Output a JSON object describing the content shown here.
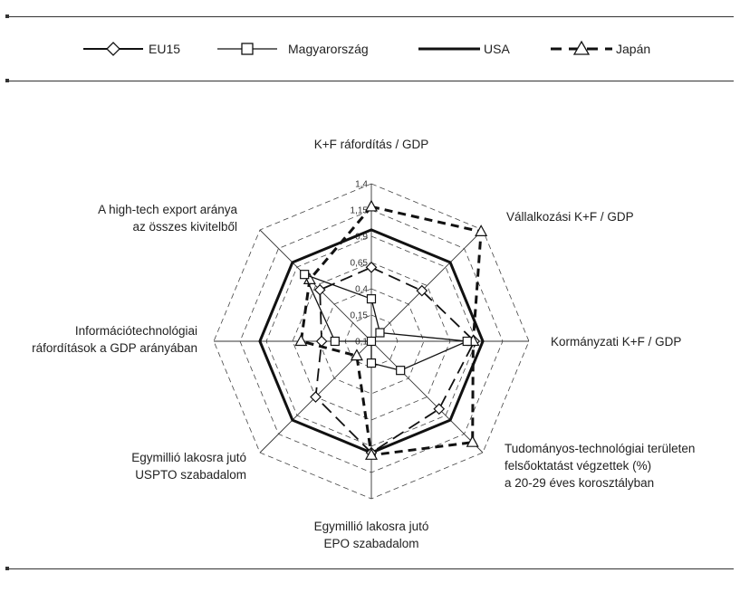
{
  "chart_data": {
    "type": "radar",
    "title": "",
    "axes": [
      [
        "K+F ráfordítás / GDP"
      ],
      [
        "Vállalkozási K+F / GDP"
      ],
      [
        "Kormányzati K+F / GDP"
      ],
      [
        "Tudományos-technológiai területen",
        "felsőoktatást végzettek (%)",
        "a 20-29 éves korosztályban"
      ],
      [
        "Egymillió lakosra jutó",
        "EPO szabadalom"
      ],
      [
        "Egymillió lakosra jutó",
        "USPTO szabadalom"
      ],
      [
        "Információtechnológiai",
        "ráfordítások a GDP arányában"
      ],
      [
        "A high-tech export aránya",
        "az összes kivitelből"
      ]
    ],
    "radial_ticks": [
      "0,1",
      "0,15",
      "0,4",
      "0,65",
      "0,9",
      "1,15",
      "1,4"
    ],
    "radial_range": [
      0.1,
      1.4
    ],
    "series": [
      {
        "name": "EU15",
        "values": [
          0.71,
          0.69,
          0.95,
          0.89,
          1.02,
          0.75,
          0.51,
          0.7
        ]
      },
      {
        "name": "Magyarország",
        "values": [
          0.45,
          0.2,
          0.89,
          0.44,
          0.28,
          0.1,
          0.4,
          0.88
        ]
      },
      {
        "name": "USA",
        "values": [
          1.02,
          1.02,
          1.02,
          1.02,
          1.02,
          1.02,
          1.02,
          1.02
        ]
      },
      {
        "name": "Japán",
        "values": [
          1.21,
          1.38,
          0.94,
          1.28,
          1.04,
          0.27,
          0.68,
          0.82
        ]
      }
    ],
    "legend_position": "top",
    "grid": true
  }
}
